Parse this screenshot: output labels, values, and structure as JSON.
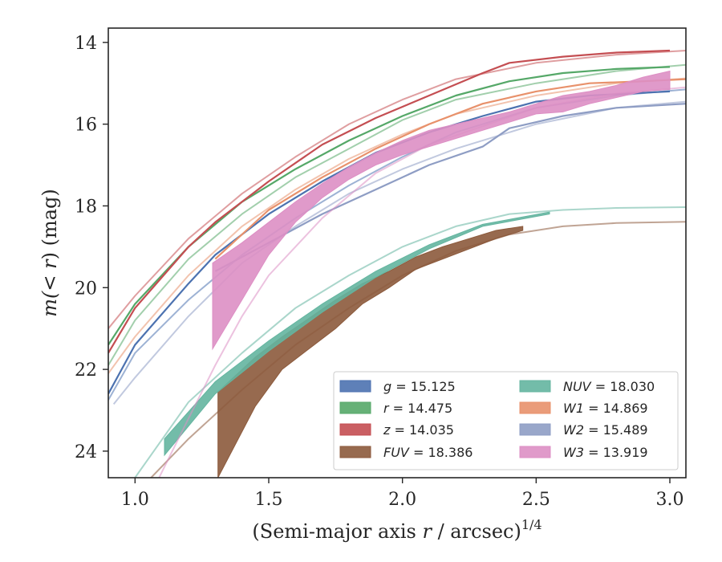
{
  "chart_data": {
    "type": "line",
    "xlabel_main": "(Semi-major axis ",
    "xlabel_r": "r",
    "xlabel_unit": " / arcsec)",
    "xlabel_exp": "1/4",
    "ylabel_pre": "m(",
    "ylabel_lt": "< r",
    "ylabel_post": ") (mag)",
    "xlim": [
      0.9,
      3.06
    ],
    "ylim": [
      24.65,
      13.65
    ],
    "y_inverted": true,
    "xticks": [
      1.0,
      1.5,
      2.0,
      2.5,
      3.0
    ],
    "xtick_labels": [
      "1.0",
      "1.5",
      "2.0",
      "2.5",
      "3.0"
    ],
    "yticks": [
      14,
      16,
      18,
      20,
      22,
      24
    ],
    "ytick_labels": [
      "14",
      "16",
      "18",
      "20",
      "22",
      "24"
    ],
    "grid": false,
    "legend_position": "lower-right",
    "legend_columns": 2,
    "series": [
      {
        "name": "g",
        "label": "g = 15.125",
        "color": "#4c72b0",
        "model": [
          [
            0.9,
            22.75
          ],
          [
            1.0,
            21.6
          ],
          [
            1.2,
            20.3
          ],
          [
            1.4,
            19.2
          ],
          [
            1.6,
            18.3
          ],
          [
            1.8,
            17.5
          ],
          [
            2.0,
            16.8
          ],
          [
            2.2,
            16.2
          ],
          [
            2.5,
            15.6
          ],
          [
            2.8,
            15.3
          ],
          [
            3.06,
            15.15
          ]
        ],
        "measured": [
          [
            0.9,
            22.6
          ],
          [
            1.0,
            21.4
          ],
          [
            1.2,
            19.9
          ],
          [
            1.3,
            19.2
          ],
          [
            1.5,
            18.2
          ],
          [
            1.7,
            17.4
          ],
          [
            1.9,
            16.7
          ],
          [
            2.1,
            16.2
          ],
          [
            2.3,
            15.8
          ],
          [
            2.5,
            15.45
          ],
          [
            2.7,
            15.3
          ],
          [
            3.0,
            15.2
          ]
        ]
      },
      {
        "name": "r",
        "label": "r = 14.475",
        "color": "#55a868",
        "model": [
          [
            0.9,
            21.9
          ],
          [
            1.0,
            20.8
          ],
          [
            1.2,
            19.3
          ],
          [
            1.4,
            18.2
          ],
          [
            1.6,
            17.3
          ],
          [
            1.8,
            16.6
          ],
          [
            2.0,
            15.9
          ],
          [
            2.2,
            15.4
          ],
          [
            2.5,
            15.0
          ],
          [
            2.8,
            14.7
          ],
          [
            3.06,
            14.55
          ]
        ],
        "measured": [
          [
            0.9,
            21.4
          ],
          [
            1.0,
            20.4
          ],
          [
            1.2,
            19.0
          ],
          [
            1.4,
            17.9
          ],
          [
            1.6,
            17.1
          ],
          [
            1.8,
            16.4
          ],
          [
            2.0,
            15.8
          ],
          [
            2.2,
            15.3
          ],
          [
            2.4,
            14.95
          ],
          [
            2.6,
            14.75
          ],
          [
            2.8,
            14.65
          ],
          [
            3.0,
            14.6
          ]
        ]
      },
      {
        "name": "z",
        "label": "z = 14.035",
        "color": "#c44e52",
        "model": [
          [
            0.9,
            21.0
          ],
          [
            1.0,
            20.2
          ],
          [
            1.2,
            18.8
          ],
          [
            1.4,
            17.7
          ],
          [
            1.6,
            16.8
          ],
          [
            1.8,
            16.0
          ],
          [
            2.0,
            15.4
          ],
          [
            2.2,
            14.9
          ],
          [
            2.5,
            14.5
          ],
          [
            2.8,
            14.3
          ],
          [
            3.06,
            14.2
          ]
        ],
        "measured": [
          [
            0.9,
            21.6
          ],
          [
            1.0,
            20.5
          ],
          [
            1.2,
            19.0
          ],
          [
            1.3,
            18.4
          ],
          [
            1.5,
            17.4
          ],
          [
            1.7,
            16.5
          ],
          [
            1.9,
            15.85
          ],
          [
            2.1,
            15.3
          ],
          [
            2.3,
            14.75
          ],
          [
            2.4,
            14.5
          ],
          [
            2.6,
            14.35
          ],
          [
            2.8,
            14.25
          ],
          [
            3.0,
            14.2
          ]
        ]
      },
      {
        "name": "FUV",
        "label": "FUV = 18.386",
        "color": "#8c5a3c",
        "model": [
          [
            1.06,
            24.65
          ],
          [
            1.2,
            23.7
          ],
          [
            1.4,
            22.5
          ],
          [
            1.6,
            21.4
          ],
          [
            1.8,
            20.5
          ],
          [
            2.0,
            19.7
          ],
          [
            2.2,
            19.1
          ],
          [
            2.4,
            18.7
          ],
          [
            2.6,
            18.5
          ],
          [
            2.8,
            18.42
          ],
          [
            3.06,
            18.39
          ]
        ],
        "band_x": [
          1.31,
          1.45,
          1.55,
          1.65,
          1.75,
          1.85,
          1.95,
          2.05,
          2.15,
          2.25,
          2.35,
          2.45
        ],
        "band_lo": [
          22.55,
          21.7,
          21.2,
          20.75,
          20.3,
          19.9,
          19.6,
          19.25,
          19.0,
          18.8,
          18.6,
          18.5
        ],
        "band_hi": [
          24.65,
          22.9,
          22.0,
          21.5,
          21.0,
          20.4,
          20.0,
          19.55,
          19.3,
          19.05,
          18.8,
          18.6
        ]
      },
      {
        "name": "NUV",
        "label": "NUV = 18.030",
        "color": "#64b5a0",
        "model": [
          [
            1.0,
            24.65
          ],
          [
            1.2,
            22.8
          ],
          [
            1.4,
            21.6
          ],
          [
            1.6,
            20.5
          ],
          [
            1.8,
            19.7
          ],
          [
            2.0,
            19.0
          ],
          [
            2.2,
            18.5
          ],
          [
            2.4,
            18.2
          ],
          [
            2.6,
            18.1
          ],
          [
            2.8,
            18.05
          ],
          [
            3.06,
            18.03
          ]
        ],
        "band_x": [
          1.11,
          1.3,
          1.5,
          1.7,
          1.9,
          2.1,
          2.3,
          2.55
        ],
        "band_lo": [
          23.7,
          22.3,
          21.3,
          20.4,
          19.6,
          18.95,
          18.45,
          18.15
        ],
        "band_hi": [
          24.1,
          22.6,
          21.55,
          20.6,
          19.75,
          19.05,
          18.5,
          18.2
        ]
      },
      {
        "name": "W1",
        "label": "W1 = 14.869",
        "color": "#e8916b",
        "model": [
          [
            0.9,
            22.1
          ],
          [
            1.0,
            21.2
          ],
          [
            1.2,
            19.7
          ],
          [
            1.4,
            18.5
          ],
          [
            1.6,
            17.6
          ],
          [
            1.8,
            16.85
          ],
          [
            2.0,
            16.25
          ],
          [
            2.2,
            15.75
          ],
          [
            2.5,
            15.3
          ],
          [
            2.8,
            15.0
          ],
          [
            3.06,
            14.88
          ]
        ],
        "measured": [
          [
            1.3,
            19.3
          ],
          [
            1.5,
            18.1
          ],
          [
            1.7,
            17.3
          ],
          [
            1.9,
            16.6
          ],
          [
            2.1,
            16.0
          ],
          [
            2.3,
            15.5
          ],
          [
            2.5,
            15.2
          ],
          [
            2.7,
            15.0
          ],
          [
            2.9,
            14.95
          ],
          [
            3.06,
            14.9
          ]
        ]
      },
      {
        "name": "W2",
        "label": "W2 = 15.489",
        "color": "#8e9dc4",
        "model": [
          [
            0.92,
            22.85
          ],
          [
            1.0,
            22.2
          ],
          [
            1.2,
            20.7
          ],
          [
            1.4,
            19.4
          ],
          [
            1.6,
            18.5
          ],
          [
            1.8,
            17.7
          ],
          [
            2.0,
            17.1
          ],
          [
            2.2,
            16.6
          ],
          [
            2.5,
            16.0
          ],
          [
            2.8,
            15.6
          ],
          [
            3.06,
            15.45
          ]
        ],
        "measured": [
          [
            1.3,
            19.6
          ],
          [
            1.5,
            18.9
          ],
          [
            1.7,
            18.2
          ],
          [
            1.9,
            17.6
          ],
          [
            2.1,
            17.0
          ],
          [
            2.3,
            16.55
          ],
          [
            2.4,
            16.1
          ],
          [
            2.6,
            15.8
          ],
          [
            2.8,
            15.6
          ],
          [
            3.06,
            15.5
          ]
        ]
      },
      {
        "name": "W3",
        "label": "W3 = 13.919",
        "color": "#dd8fc4",
        "model": [
          [
            1.09,
            24.65
          ],
          [
            1.2,
            23.2
          ],
          [
            1.3,
            21.9
          ],
          [
            1.4,
            20.7
          ],
          [
            1.5,
            19.7
          ],
          [
            1.7,
            18.3
          ],
          [
            1.9,
            17.2
          ],
          [
            2.1,
            16.5
          ],
          [
            2.3,
            16.05
          ],
          [
            2.5,
            15.6
          ],
          [
            2.8,
            15.25
          ],
          [
            3.06,
            15.1
          ]
        ],
        "band_x": [
          1.29,
          1.4,
          1.5,
          1.6,
          1.7,
          1.8,
          1.9,
          2.0,
          2.1,
          2.2,
          2.3,
          2.4,
          2.5,
          2.6,
          2.7,
          2.8,
          2.9,
          3.0
        ],
        "band_lo": [
          19.4,
          18.9,
          18.4,
          17.9,
          17.45,
          17.05,
          16.7,
          16.4,
          16.15,
          16.0,
          15.85,
          15.7,
          15.5,
          15.3,
          15.2,
          15.05,
          14.85,
          14.7
        ],
        "band_hi": [
          21.5,
          20.3,
          19.2,
          18.4,
          17.8,
          17.35,
          17.0,
          16.75,
          16.55,
          16.35,
          16.15,
          15.95,
          15.75,
          15.7,
          15.5,
          15.35,
          15.2,
          15.15
        ]
      }
    ]
  }
}
